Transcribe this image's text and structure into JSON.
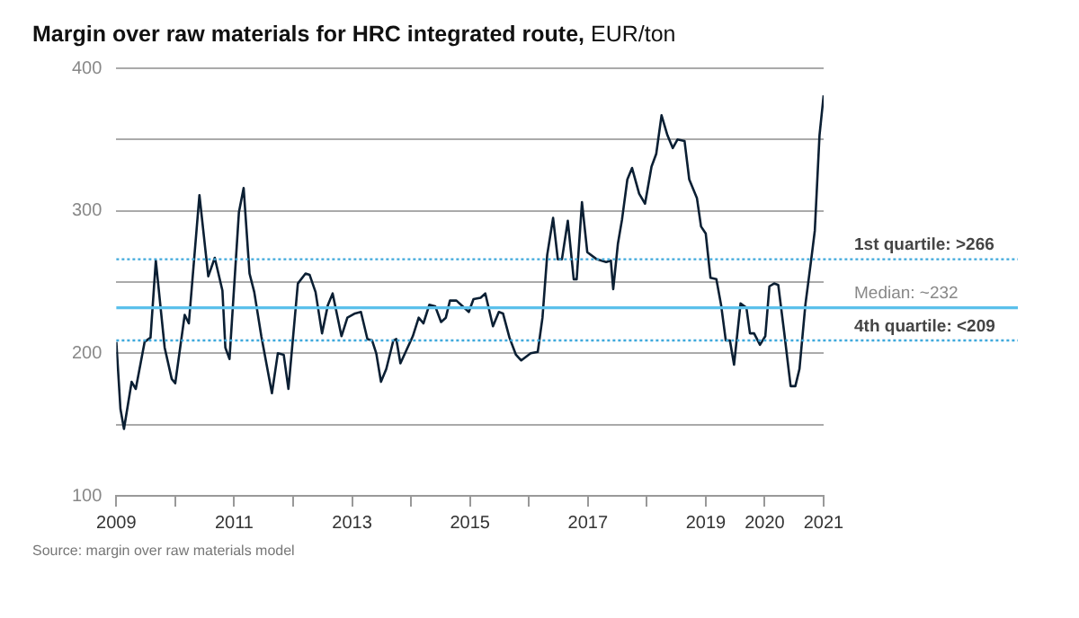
{
  "chart_data": {
    "type": "line",
    "title": "Margin over raw materials for HRC integrated route,",
    "subtitle": "EUR/ton",
    "series": [
      {
        "color": "#0b1f33",
        "x": [
          2009.0,
          2009.07,
          2009.13,
          2009.26,
          2009.33,
          2009.48,
          2009.58,
          2009.67,
          2009.82,
          2009.94,
          2010.0,
          2010.16,
          2010.23,
          2010.41,
          2010.56,
          2010.67,
          2010.8,
          2010.85,
          2010.92,
          2011.08,
          2011.16,
          2011.26,
          2011.34,
          2011.46,
          2011.64,
          2011.74,
          2011.84,
          2011.92,
          2012.08,
          2012.21,
          2012.28,
          2012.38,
          2012.49,
          2012.59,
          2012.67,
          2012.82,
          2012.92,
          2013.05,
          2013.15,
          2013.26,
          2013.34,
          2013.41,
          2013.49,
          2013.58,
          2013.7,
          2013.75,
          2013.82,
          2014.03,
          2014.13,
          2014.21,
          2014.31,
          2014.41,
          2014.51,
          2014.59,
          2014.66,
          2014.77,
          2014.98,
          2015.06,
          2015.18,
          2015.26,
          2015.39,
          2015.49,
          2015.56,
          2015.67,
          2015.78,
          2015.87,
          2016.03,
          2016.15,
          2016.23,
          2016.31,
          2016.41,
          2016.49,
          2016.56,
          2016.66,
          2016.76,
          2016.81,
          2016.9,
          2016.99,
          2017.15,
          2017.31,
          2017.39,
          2017.43,
          2017.51,
          2017.58,
          2017.67,
          2017.75,
          2017.87,
          2017.97,
          2018.08,
          2018.16,
          2018.25,
          2018.35,
          2018.44,
          2018.52,
          2018.64,
          2018.72,
          2018.85,
          2018.92,
          2019.0,
          2019.08,
          2019.18,
          2019.26,
          2019.34,
          2019.41,
          2019.48,
          2019.59,
          2019.69,
          2019.75,
          2019.82,
          2019.92,
          2020.01,
          2020.08,
          2020.16,
          2020.23,
          2020.33,
          2020.44,
          2020.52,
          2020.59,
          2020.69,
          2020.79,
          2020.85,
          2020.93,
          2021.0
        ],
        "values": [
          208,
          161,
          147,
          180,
          175,
          208,
          211,
          265,
          204,
          182,
          179,
          227,
          221,
          311,
          254,
          267,
          244,
          204,
          196,
          299,
          316,
          256,
          243,
          212,
          172,
          200,
          199,
          175,
          249,
          256,
          255,
          243,
          214,
          234,
          242,
          212,
          225,
          228,
          229,
          210,
          209,
          200,
          180,
          189,
          209,
          210,
          193,
          212,
          225,
          221,
          234,
          233,
          222,
          225,
          237,
          237,
          229,
          238,
          239,
          242,
          219,
          229,
          228,
          211,
          199,
          195,
          200,
          201,
          225,
          269,
          295,
          266,
          266,
          293,
          252,
          252,
          306,
          271,
          266,
          264,
          265,
          245,
          277,
          294,
          322,
          330,
          312,
          305,
          331,
          340,
          367,
          353,
          344,
          350,
          349,
          322,
          309,
          289,
          284,
          253,
          252,
          234,
          209,
          209,
          192,
          235,
          232,
          214,
          214,
          206,
          212,
          247,
          249,
          248,
          215,
          177,
          177,
          189,
          234,
          266,
          286,
          353,
          381
        ]
      }
    ],
    "xlim": [
      2009,
      2021
    ],
    "xticks": [
      2009,
      {
        "value": 2010,
        "label": null
      },
      2011,
      {
        "value": 2012,
        "label": null
      },
      2013,
      {
        "value": 2014,
        "label": null
      },
      2015,
      {
        "value": 2016,
        "label": null
      },
      2017,
      {
        "value": 2018,
        "label": null
      },
      2019,
      2020,
      2021
    ],
    "ylim": [
      100,
      400
    ],
    "yticks": [
      100,
      {
        "value": 150,
        "label": null
      },
      200,
      {
        "value": 250,
        "label": null
      },
      300,
      {
        "value": 350,
        "label": null
      },
      400
    ],
    "grid": "y",
    "legend": false,
    "marker": "none",
    "line_style": "solid",
    "ref_lines": [
      {
        "axis": "y",
        "value": 266,
        "label": "1st quartile: >266",
        "color": "#3fa9dc",
        "line_style": "dotted"
      },
      {
        "axis": "y",
        "value": 232,
        "label": "Median: ~232",
        "color": "#5bc0eb",
        "line_style": "solid"
      },
      {
        "axis": "y",
        "value": 209,
        "label": "4th quartile: <209",
        "color": "#3fa9dc",
        "line_style": "dotted"
      }
    ],
    "annotations": [
      "Source: margin over raw materials model"
    ]
  }
}
